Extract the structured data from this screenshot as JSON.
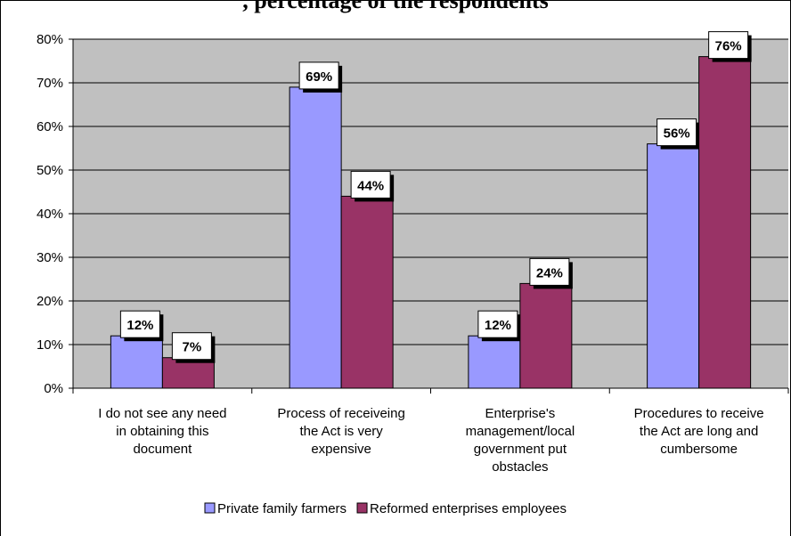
{
  "chart_data": {
    "type": "bar",
    "title": ", percentage of the respondents",
    "categories": [
      [
        "I do not see any need",
        "in obtaining this",
        "document"
      ],
      [
        "Process of receiveing",
        "the Act is very",
        "expensive"
      ],
      [
        "Enterprise's",
        "management/local",
        "government put",
        "obstacles"
      ],
      [
        "Procedures to receive",
        "the Act are long and",
        "cumbersome"
      ]
    ],
    "series": [
      {
        "name": "Private family farmers",
        "values": [
          12,
          69,
          12,
          56
        ],
        "labels": [
          "12%",
          "69%",
          "12%",
          "56%"
        ],
        "color": "#9999ff"
      },
      {
        "name": "Reformed enterprises employees",
        "values": [
          7,
          44,
          24,
          76
        ],
        "labels": [
          "7%",
          "44%",
          "24%",
          "76%"
        ],
        "color": "#993366"
      }
    ],
    "ylim": [
      0,
      80
    ],
    "yticks": [
      "0%",
      "10%",
      "20%",
      "30%",
      "40%",
      "50%",
      "60%",
      "70%",
      "80%"
    ],
    "plot_background": "#c0c0c0",
    "grid": true,
    "legend": "bottom"
  }
}
